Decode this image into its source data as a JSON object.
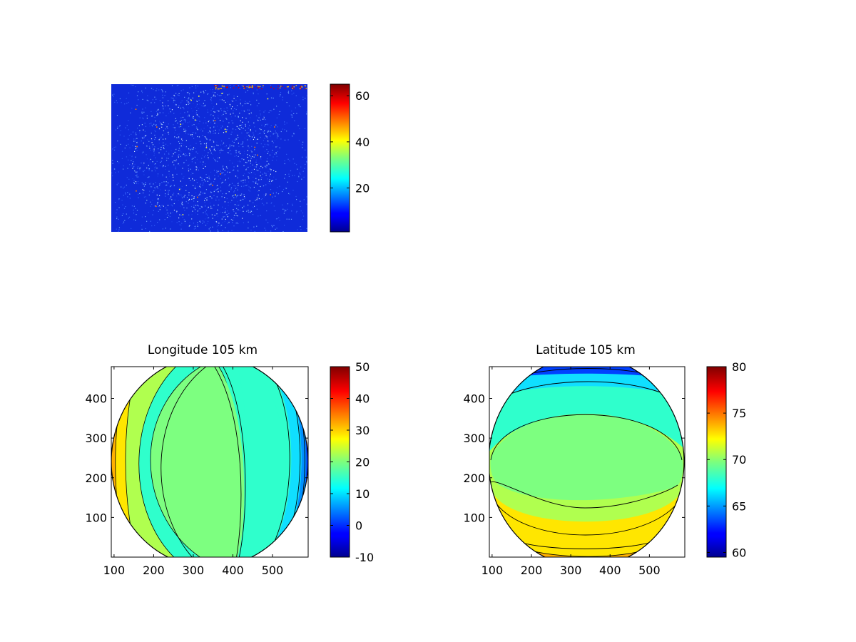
{
  "chart_data": [
    {
      "type": "heatmap",
      "id": "raw-image",
      "title": "",
      "description_note": "",
      "colorbar": {
        "min": 1,
        "max": 65,
        "ticks": [
          20,
          40,
          60
        ],
        "colormap": "jet"
      },
      "background_color": "#0f2bd9"
    },
    {
      "type": "heatmap",
      "id": "longitude",
      "title": "Longitude 105 km",
      "xlim": [
        93,
        590
      ],
      "ylim": [
        0,
        480
      ],
      "xticks": [
        100,
        200,
        300,
        400,
        500
      ],
      "yticks": [
        100,
        200,
        300,
        400
      ],
      "colorbar": {
        "min": -10,
        "max": 50,
        "ticks": [
          -10,
          0,
          10,
          20,
          30,
          40,
          50
        ],
        "colormap": "jet"
      },
      "disc": {
        "cx": 340,
        "cy": 240,
        "rx": 248,
        "ry": 270
      },
      "contour_bands": [
        {
          "value": 16,
          "color": "#2fffcc"
        },
        {
          "value": 20,
          "color": "#7dff80"
        },
        {
          "value": 24,
          "color": "#b0ff4f"
        },
        {
          "value": 28,
          "color": "#ffe600"
        },
        {
          "value": 32,
          "color": "#ffb000"
        },
        {
          "value": 12,
          "color": "#10dfff"
        },
        {
          "value": 8,
          "color": "#0090ff"
        },
        {
          "value": 4,
          "color": "#0040ff"
        }
      ]
    },
    {
      "type": "heatmap",
      "id": "latitude",
      "title": "Latitude 105 km",
      "xlim": [
        93,
        590
      ],
      "ylim": [
        0,
        480
      ],
      "xticks": [
        100,
        200,
        300,
        400,
        500
      ],
      "yticks": [
        100,
        200,
        300,
        400
      ],
      "colorbar": {
        "min": 59.5,
        "max": 80,
        "ticks": [
          60,
          65,
          70,
          75,
          80
        ],
        "colormap": "jet"
      },
      "disc": {
        "cx": 340,
        "cy": 240,
        "rx": 248,
        "ry": 270
      },
      "contour_bands": [
        {
          "value": 69,
          "color": "#7dff80"
        },
        {
          "value": 71,
          "color": "#b0ff4f"
        },
        {
          "value": 67,
          "color": "#2fffcc"
        },
        {
          "value": 66,
          "color": "#10dfff"
        },
        {
          "value": 73,
          "color": "#ffe600"
        },
        {
          "value": 75,
          "color": "#ffb000"
        }
      ]
    }
  ]
}
